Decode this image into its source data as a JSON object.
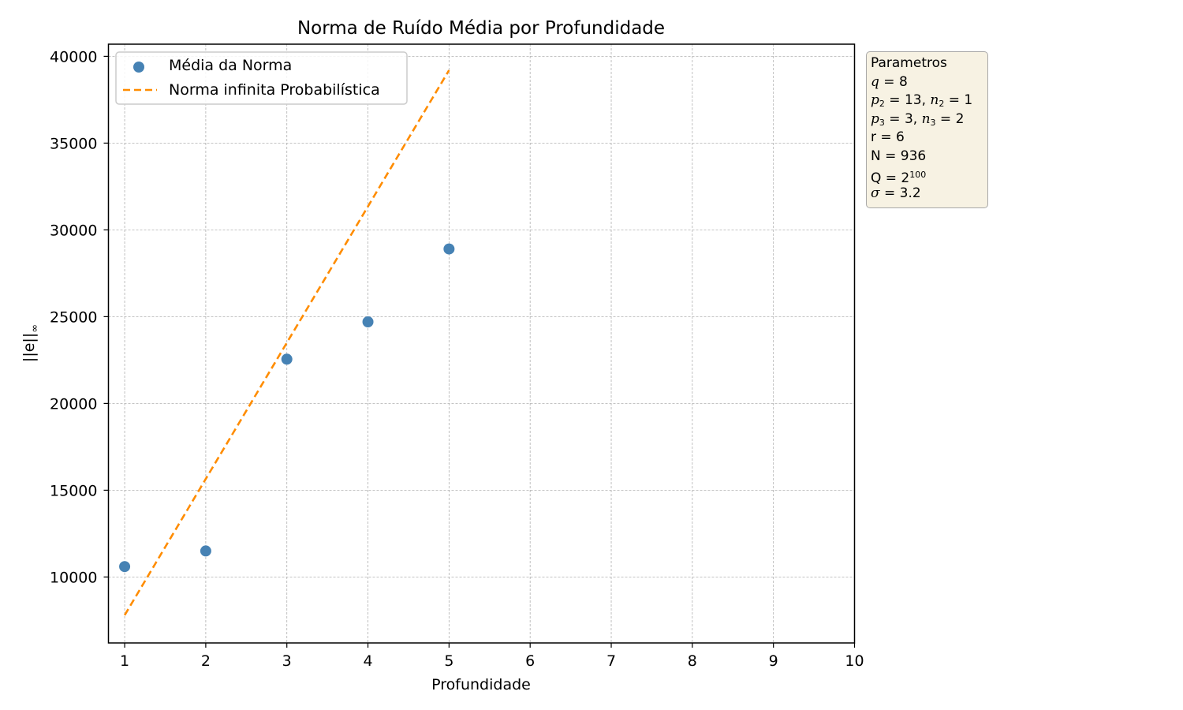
{
  "chart_data": {
    "type": "scatter+line",
    "title": "Norma de Ruído Média por Profundidade",
    "xlabel": "Profundidade",
    "ylabel_base": "||e||",
    "ylabel_sub": "∞",
    "xlim": [
      0.8,
      10
    ],
    "ylim": [
      6200,
      40700
    ],
    "xticks": [
      1,
      2,
      3,
      4,
      5,
      6,
      7,
      8,
      9,
      10
    ],
    "yticks": [
      10000,
      15000,
      20000,
      25000,
      30000,
      35000,
      40000
    ],
    "grid": true,
    "legend_position": "top-left",
    "series": [
      {
        "name": "Média da Norma",
        "kind": "scatter",
        "color": "#4682b4",
        "x": [
          1,
          2,
          3,
          4,
          5
        ],
        "y": [
          10600,
          11500,
          22550,
          24700,
          28900
        ]
      },
      {
        "name": "Norma infinita Probabilística",
        "kind": "line",
        "style": "dashed",
        "color": "#ff8c00",
        "x": [
          1,
          2,
          3,
          4,
          5
        ],
        "y": [
          7800,
          15650,
          23500,
          31350,
          39200
        ]
      }
    ]
  },
  "params": {
    "title": "Parametros",
    "q_label": "q",
    "q_val": " = 8",
    "p2_label": "p",
    "p2_sub": "2",
    "p2_val": " = 13, ",
    "n2_label": "n",
    "n2_sub": "2",
    "n2_val": " = 1",
    "p3_label": "p",
    "p3_sub": "3",
    "p3_val": " = 3, ",
    "n3_label": "n",
    "n3_sub": "3",
    "n3_val": " = 2",
    "r_line": "r = 6",
    "N_line": "N = 936",
    "Q_base": "Q = 2",
    "Q_exp": "100",
    "sigma_label": "σ",
    "sigma_val": " = 3.2"
  }
}
